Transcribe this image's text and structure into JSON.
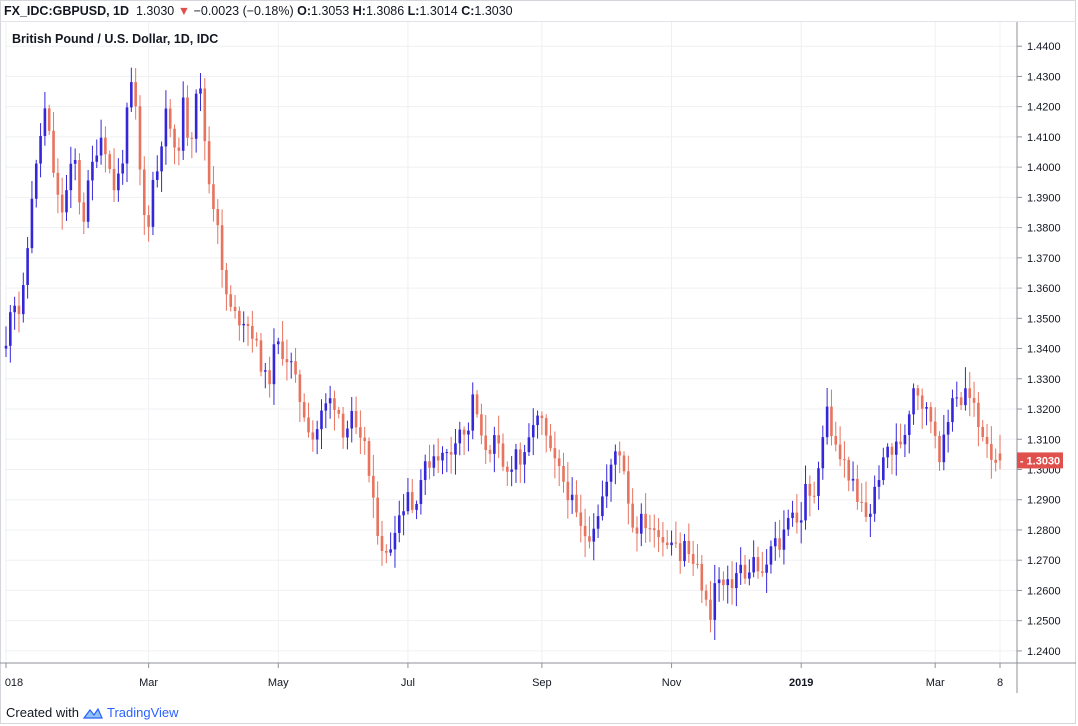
{
  "header": {
    "symbol": "FX_IDC:GBPUSD, 1D",
    "last": "1.3030",
    "change": "−0.0023 (−0.18%)",
    "o_label": "O:",
    "o": "1.3053",
    "h_label": "H:",
    "h": "1.3086",
    "l_label": "L:",
    "l": "1.3014",
    "c_label": "C:",
    "c": "1.3030",
    "change_direction_color": "#e0514e"
  },
  "footer": {
    "created_with": "Created with",
    "brand": "TradingView"
  },
  "colors": {
    "up": "#3427d9",
    "down": "#e8735e",
    "grid": "#eef0f3",
    "axis": "#8e919a",
    "price_tag": "#e0514e"
  },
  "chart_data": {
    "type": "candlestick",
    "title": "British Pound / U.S. Dollar, 1D, IDC",
    "ylim": [
      1.236,
      1.448
    ],
    "y_ticks": [
      "1.2400",
      "1.2500",
      "1.2600",
      "1.2700",
      "1.2800",
      "1.2900",
      "1.3000",
      "1.3100",
      "1.3200",
      "1.3300",
      "1.3400",
      "1.3500",
      "1.3600",
      "1.3700",
      "1.3800",
      "1.3900",
      "1.4000",
      "1.4100",
      "1.4200",
      "1.4300",
      "1.4400"
    ],
    "x_ticks": [
      "018",
      "Mar",
      "May",
      "Jul",
      "Sep",
      "Nov",
      "2019",
      "Mar",
      "8"
    ],
    "x_tick_index": [
      0,
      33,
      63,
      93,
      124,
      154,
      184,
      215,
      230
    ],
    "n_bars": 231,
    "last_price_label": "1.3030",
    "close_path": [
      [
        0,
        1.34
      ],
      [
        3,
        1.354
      ],
      [
        6,
        1.357
      ],
      [
        10,
        1.352
      ],
      [
        14,
        1.359
      ],
      [
        16,
        1.368
      ],
      [
        20,
        1.39
      ],
      [
        24,
        1.4
      ],
      [
        30,
        1.42
      ],
      [
        34,
        1.41
      ],
      [
        40,
        1.39
      ],
      [
        45,
        1.385
      ],
      [
        50,
        1.398
      ],
      [
        55,
        1.402
      ],
      [
        60,
        1.38
      ],
      [
        64,
        1.392
      ],
      [
        70,
        1.405
      ],
      [
        76,
        1.412
      ],
      [
        82,
        1.398
      ],
      [
        86,
        1.392
      ],
      [
        92,
        1.404
      ],
      [
        96,
        1.42
      ],
      [
        100,
        1.43
      ],
      [
        104,
        1.406
      ],
      [
        108,
        1.384
      ],
      [
        112,
        1.382
      ],
      [
        116,
        1.397
      ],
      [
        120,
        1.4
      ],
      [
        124,
        1.416
      ],
      [
        128,
        1.418
      ],
      [
        131,
        1.406
      ],
      [
        135,
        1.4
      ],
      [
        138,
        1.425
      ],
      [
        142,
        1.412
      ],
      [
        146,
        1.411
      ],
      [
        150,
        1.428
      ],
      [
        154,
        1.423
      ],
      [
        158,
        1.4
      ],
      [
        162,
        1.389
      ],
      [
        166,
        1.386
      ],
      [
        170,
        1.364
      ],
      [
        176,
        1.353
      ],
      [
        182,
        1.35
      ],
      [
        188,
        1.35
      ],
      [
        194,
        1.345
      ],
      [
        200,
        1.336
      ],
      [
        206,
        1.327
      ],
      [
        212,
        1.342
      ],
      [
        218,
        1.339
      ],
      [
        224,
        1.335
      ],
      [
        230,
        1.325
      ],
      [
        236,
        1.317
      ],
      [
        242,
        1.31
      ],
      [
        248,
        1.318
      ],
      [
        254,
        1.323
      ],
      [
        260,
        1.322
      ],
      [
        266,
        1.312
      ],
      [
        272,
        1.317
      ],
      [
        278,
        1.307
      ],
      [
        282,
        1.311
      ],
      [
        286,
        1.296
      ],
      [
        290,
        1.285
      ],
      [
        295,
        1.276
      ],
      [
        300,
        1.27
      ],
      [
        306,
        1.282
      ],
      [
        312,
        1.287
      ],
      [
        316,
        1.294
      ],
      [
        320,
        1.286
      ],
      [
        326,
        1.297
      ],
      [
        332,
        1.302
      ],
      [
        338,
        1.306
      ],
      [
        344,
        1.304
      ],
      [
        350,
        1.306
      ],
      [
        356,
        1.315
      ],
      [
        362,
        1.309
      ],
      [
        368,
        1.325
      ],
      [
        374,
        1.309
      ],
      [
        380,
        1.307
      ],
      [
        386,
        1.31
      ],
      [
        390,
        1.3
      ],
      [
        396,
        1.298
      ],
      [
        400,
        1.308
      ],
      [
        406,
        1.301
      ],
      [
        410,
        1.305
      ],
      [
        414,
        1.316
      ],
      [
        418,
        1.316
      ],
      [
        422,
        1.315
      ],
      [
        428,
        1.305
      ],
      [
        434,
        1.3
      ],
      [
        440,
        1.295
      ],
      [
        446,
        1.288
      ],
      [
        452,
        1.28
      ],
      [
        458,
        1.278
      ],
      [
        464,
        1.284
      ],
      [
        470,
        1.292
      ],
      [
        476,
        1.3
      ],
      [
        480,
        1.307
      ],
      [
        484,
        1.306
      ],
      [
        488,
        1.296
      ],
      [
        492,
        1.282
      ],
      [
        496,
        1.281
      ],
      [
        500,
        1.283
      ],
      [
        506,
        1.282
      ],
      [
        510,
        1.278
      ],
      [
        514,
        1.281
      ],
      [
        518,
        1.275
      ],
      [
        522,
        1.278
      ],
      [
        526,
        1.279
      ],
      [
        530,
        1.27
      ],
      [
        534,
        1.276
      ],
      [
        538,
        1.271
      ],
      [
        542,
        1.268
      ],
      [
        546,
        1.265
      ],
      [
        550,
        1.256
      ],
      [
        554,
        1.252
      ],
      [
        558,
        1.263
      ],
      [
        562,
        1.263
      ],
      [
        566,
        1.26
      ],
      [
        570,
        1.262
      ],
      [
        574,
        1.265
      ],
      [
        578,
        1.268
      ],
      [
        582,
        1.262
      ],
      [
        586,
        1.27
      ],
      [
        590,
        1.27
      ],
      [
        594,
        1.262
      ],
      [
        598,
        1.268
      ],
      [
        602,
        1.274
      ],
      [
        606,
        1.276
      ],
      [
        610,
        1.274
      ],
      [
        614,
        1.285
      ],
      [
        618,
        1.288
      ],
      [
        622,
        1.282
      ],
      [
        626,
        1.285
      ],
      [
        630,
        1.296
      ],
      [
        634,
        1.286
      ],
      [
        638,
        1.3
      ],
      [
        642,
        1.31
      ],
      [
        646,
        1.32
      ],
      [
        650,
        1.311
      ],
      [
        654,
        1.305
      ],
      [
        658,
        1.303
      ],
      [
        662,
        1.3
      ],
      [
        666,
        1.295
      ],
      [
        670,
        1.288
      ],
      [
        674,
        1.288
      ],
      [
        678,
        1.283
      ],
      [
        682,
        1.29
      ],
      [
        686,
        1.298
      ],
      [
        690,
        1.301
      ],
      [
        694,
        1.308
      ],
      [
        698,
        1.305
      ],
      [
        702,
        1.309
      ],
      [
        706,
        1.31
      ],
      [
        710,
        1.319
      ],
      [
        714,
        1.328
      ],
      [
        718,
        1.326
      ],
      [
        722,
        1.32
      ],
      [
        726,
        1.318
      ],
      [
        730,
        1.315
      ],
      [
        734,
        1.305
      ],
      [
        738,
        1.309
      ],
      [
        742,
        1.317
      ],
      [
        746,
        1.33
      ],
      [
        750,
        1.32
      ],
      [
        754,
        1.327
      ],
      [
        758,
        1.323
      ],
      [
        762,
        1.32
      ],
      [
        766,
        1.312
      ],
      [
        770,
        1.313
      ],
      [
        774,
        1.306
      ],
      [
        778,
        1.304
      ],
      [
        782,
        1.303
      ]
    ]
  }
}
